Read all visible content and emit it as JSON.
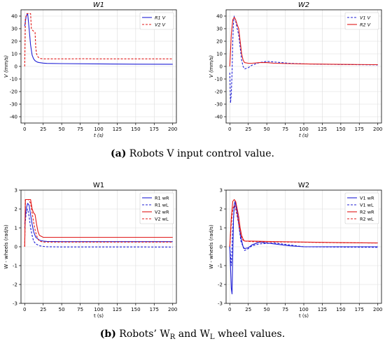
{
  "captions": {
    "a_label": "(a)",
    "a_text": "Robots V input control value.",
    "b_label": "(b)",
    "b_text_pre": "Robots’ W",
    "b_sub1": "R",
    "b_mid": " and W",
    "b_sub2": "L",
    "b_text_post": " wheel values."
  },
  "colors": {
    "blue": "#1f1fd6",
    "red": "#e01818",
    "axis": "#000000",
    "grid": "#dcdcdc"
  },
  "chart_data": [
    {
      "type": "line",
      "title": "W1",
      "xlabel": "t (s)",
      "ylabel": "V (mm/s)",
      "xlim": [
        -5,
        205
      ],
      "ylim": [
        -45,
        45
      ],
      "xticks": [
        0,
        25,
        50,
        75,
        100,
        125,
        150,
        175,
        200
      ],
      "yticks": [
        -40,
        -30,
        -20,
        -10,
        0,
        10,
        20,
        30,
        40
      ],
      "grid": true,
      "legend": "top-right",
      "series": [
        {
          "name": "R1 V",
          "color": "#1f1fd6",
          "dash": "solid",
          "x": [
            0,
            2,
            4,
            6,
            8,
            10,
            12,
            14,
            16,
            18,
            20,
            25,
            30,
            50,
            100,
            150,
            200
          ],
          "y": [
            32,
            40,
            42,
            30,
            17,
            9,
            6,
            4.5,
            3.8,
            3.2,
            3.0,
            2.6,
            2.4,
            2.2,
            2.0,
            1.8,
            1.7
          ]
        },
        {
          "name": "V2 V",
          "color": "#e01818",
          "dash": "dashed",
          "x": [
            0,
            1,
            3,
            5,
            8,
            9,
            10,
            12,
            14,
            15,
            16,
            18,
            20,
            22,
            25,
            30,
            40,
            60,
            80,
            100,
            120,
            140,
            160,
            180,
            200
          ],
          "y": [
            0,
            38,
            42,
            42,
            42,
            30,
            29,
            28,
            27,
            15,
            10,
            7.5,
            6.5,
            6.2,
            6.0,
            6.0,
            6.0,
            6.0,
            6.1,
            6.0,
            6.0,
            6.0,
            6.0,
            6.0,
            6.0
          ]
        }
      ]
    },
    {
      "type": "line",
      "title": "W2",
      "xlabel": "t (s)",
      "ylabel": "V (mm/s)",
      "xlim": [
        -5,
        205
      ],
      "ylim": [
        -45,
        45
      ],
      "xticks": [
        0,
        25,
        50,
        75,
        100,
        125,
        150,
        175,
        200
      ],
      "yticks": [
        -40,
        -30,
        -20,
        -10,
        0,
        10,
        20,
        30,
        40
      ],
      "grid": true,
      "legend": "top-right",
      "series": [
        {
          "name": "V1 V",
          "color": "#1f1fd6",
          "dash": "dashed",
          "x": [
            0,
            1,
            2,
            3,
            4,
            5,
            6,
            8,
            10,
            12,
            14,
            16,
            18,
            20,
            25,
            30,
            35,
            40,
            50,
            60,
            70,
            80,
            100,
            150,
            200
          ],
          "y": [
            -5,
            -29,
            -22,
            -5,
            20,
            35,
            40,
            36,
            30,
            25,
            15,
            5,
            0,
            -2,
            -1,
            1,
            2,
            3,
            4,
            3.5,
            3,
            2.5,
            2,
            1.5,
            1.2
          ]
        },
        {
          "name": "R2 V",
          "color": "#e01818",
          "dash": "solid",
          "x": [
            0,
            2,
            4,
            6,
            8,
            10,
            12,
            14,
            16,
            18,
            20,
            25,
            30,
            40,
            50,
            60,
            80,
            100,
            150,
            200
          ],
          "y": [
            0,
            25,
            37,
            39,
            37,
            33,
            30,
            20,
            10,
            5,
            3,
            2.5,
            2.5,
            3,
            3,
            2.5,
            2.2,
            2,
            1.6,
            1.4
          ]
        }
      ]
    },
    {
      "type": "line",
      "title": "W1",
      "xlabel": "t (s)",
      "ylabel": "W - wheels (rad/s)",
      "xlim": [
        -5,
        205
      ],
      "ylim": [
        -3,
        3
      ],
      "xticks": [
        0,
        25,
        50,
        75,
        100,
        125,
        150,
        175,
        200
      ],
      "yticks": [
        -3,
        -2,
        -1,
        0,
        1,
        2,
        3
      ],
      "grid": true,
      "legend": "top-right",
      "series": [
        {
          "name": "R1 wR",
          "color": "#1f1fd6",
          "dash": "solid",
          "x": [
            0,
            2,
            4,
            6,
            8,
            10,
            12,
            15,
            20,
            25,
            30,
            50,
            100,
            150,
            200
          ],
          "y": [
            1.2,
            2.0,
            2.3,
            2.2,
            1.7,
            1.2,
            0.8,
            0.5,
            0.35,
            0.3,
            0.28,
            0.27,
            0.27,
            0.27,
            0.27
          ]
        },
        {
          "name": "R1 wL",
          "color": "#1f1fd6",
          "dash": "dashed",
          "x": [
            0,
            2,
            4,
            6,
            8,
            10,
            12,
            15,
            20,
            25,
            30,
            50,
            100,
            150,
            200
          ],
          "y": [
            1.0,
            1.8,
            2.0,
            1.6,
            1.0,
            0.6,
            0.3,
            0.15,
            0.05,
            0.02,
            0.0,
            -0.01,
            -0.01,
            -0.01,
            -0.02
          ]
        },
        {
          "name": "V2 wR",
          "color": "#e01818",
          "dash": "solid",
          "x": [
            0,
            1,
            3,
            5,
            8,
            10,
            12,
            14,
            16,
            18,
            20,
            25,
            30,
            50,
            100,
            150,
            200
          ],
          "y": [
            0,
            2.5,
            2.5,
            2.5,
            2.5,
            2.0,
            1.8,
            1.7,
            1.2,
            0.8,
            0.6,
            0.5,
            0.5,
            0.5,
            0.5,
            0.5,
            0.5
          ]
        },
        {
          "name": "V2 wL",
          "color": "#e01818",
          "dash": "dashed",
          "x": [
            0,
            1,
            3,
            5,
            8,
            10,
            12,
            14,
            16,
            18,
            20,
            25,
            30,
            50,
            100,
            150,
            200
          ],
          "y": [
            0,
            2.5,
            2.5,
            2.5,
            2.3,
            1.8,
            1.3,
            0.9,
            0.6,
            0.4,
            0.3,
            0.25,
            0.25,
            0.25,
            0.25,
            0.25,
            0.25
          ]
        }
      ]
    },
    {
      "type": "line",
      "title": "W2",
      "xlabel": "t (s)",
      "ylabel": "W - wheels (rad/s)",
      "xlim": [
        -5,
        205
      ],
      "ylim": [
        -3,
        3
      ],
      "xticks": [
        0,
        25,
        50,
        75,
        100,
        125,
        150,
        175,
        200
      ],
      "yticks": [
        -3,
        -2,
        -1,
        0,
        1,
        2,
        3
      ],
      "grid": true,
      "legend": "top-right",
      "series": [
        {
          "name": "V1 wR",
          "color": "#1f1fd6",
          "dash": "solid",
          "x": [
            0,
            2,
            3,
            4,
            5,
            6,
            7,
            8,
            10,
            12,
            15,
            18,
            20,
            25,
            30,
            40,
            60,
            80,
            100,
            150,
            200
          ],
          "y": [
            0,
            -2.2,
            -2.5,
            -0.5,
            1.5,
            2.2,
            2.4,
            2.2,
            1.8,
            1.2,
            0.5,
            0.0,
            -0.1,
            -0.05,
            0.1,
            0.25,
            0.15,
            0.05,
            0.0,
            0.0,
            0.0
          ]
        },
        {
          "name": "V1 wL",
          "color": "#1f1fd6",
          "dash": "dashed",
          "x": [
            0,
            2,
            4,
            6,
            8,
            10,
            12,
            15,
            20,
            25,
            30,
            40,
            60,
            80,
            100,
            150,
            200
          ],
          "y": [
            0,
            -1.0,
            1.0,
            2.0,
            2.3,
            1.9,
            1.2,
            0.3,
            -0.2,
            -0.1,
            0.05,
            0.15,
            0.2,
            0.1,
            0.0,
            -0.02,
            -0.03
          ]
        },
        {
          "name": "R2 wR",
          "color": "#e01818",
          "dash": "solid",
          "x": [
            0,
            2,
            4,
            6,
            8,
            10,
            12,
            14,
            16,
            18,
            20,
            25,
            30,
            50,
            100,
            150,
            200
          ],
          "y": [
            0,
            1.5,
            2.4,
            2.5,
            2.4,
            2.0,
            1.6,
            1.0,
            0.6,
            0.4,
            0.3,
            0.3,
            0.3,
            0.28,
            0.25,
            0.22,
            0.2
          ]
        },
        {
          "name": "R2 wL",
          "color": "#e01818",
          "dash": "dashed",
          "x": [
            0,
            2,
            4,
            6,
            8,
            10,
            12,
            14,
            16,
            18,
            20,
            25,
            30,
            50,
            100,
            150,
            200
          ],
          "y": [
            0,
            1.2,
            2.0,
            2.2,
            2.0,
            1.6,
            1.2,
            0.8,
            0.5,
            0.35,
            0.3,
            0.28,
            0.27,
            0.26,
            0.24,
            0.21,
            0.2
          ]
        }
      ]
    }
  ]
}
